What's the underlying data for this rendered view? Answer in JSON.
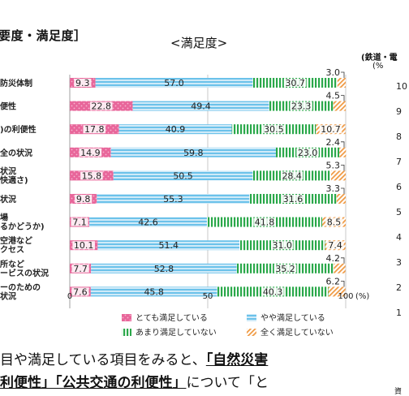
{
  "header_left": "要度・満足度］",
  "right_note": "(鉄道・電",
  "right_unit": "(%",
  "source": "資",
  "bottom_text": {
    "line1_plain": "目や満足している項目をみると、",
    "line1_ul": "「自然災害",
    "line2_ul1": "利便性」",
    "line2_ul2": "「公共交通の利便性」",
    "line2_plain": "について「と"
  },
  "right_axis_ticks": [
    "10",
    "9",
    "8",
    "7",
    "6",
    "5",
    "4",
    "3",
    "2",
    "1"
  ],
  "colors": {
    "very_satisfied": "#e8669a",
    "somewhat_satisfied": "#74c6ec",
    "not_very_satisfied": "#2aa84a",
    "not_at_all": "#f09a44"
  },
  "chart_data": {
    "type": "bar",
    "orientation": "horizontal",
    "stacked": true,
    "title": "<満足度>",
    "xlim": [
      0,
      100
    ],
    "x_ticks": [
      "0",
      "50",
      "100"
    ],
    "x_unit": "(%)",
    "categories": [
      [
        "防災体制"
      ],
      [
        "便性"
      ],
      [
        ")の利便性"
      ],
      [
        "全の状況"
      ],
      [
        "状況",
        "快適さ)"
      ],
      [
        "状況"
      ],
      [
        "場",
        "るかどうか)"
      ],
      [
        "空港など",
        "クセス"
      ],
      [
        "所など",
        "ービスの状況"
      ],
      [
        "ーのための",
        "状況"
      ]
    ],
    "series": [
      {
        "name": "とても満足している",
        "key": "very_satisfied",
        "values": [
          9.3,
          22.8,
          17.8,
          14.9,
          15.8,
          9.8,
          7.1,
          10.1,
          7.7,
          7.6
        ]
      },
      {
        "name": "やや満足している",
        "key": "somewhat_satisfied",
        "values": [
          57.0,
          49.4,
          40.9,
          59.8,
          50.5,
          55.3,
          42.6,
          51.4,
          52.8,
          45.8
        ]
      },
      {
        "name": "あまり満足していない",
        "key": "not_very_satisfied",
        "values": [
          30.7,
          23.3,
          30.5,
          23.0,
          28.4,
          31.6,
          41.8,
          31.0,
          35.2,
          40.3
        ]
      },
      {
        "name": "全く満足していない",
        "key": "not_at_all",
        "values": [
          3.0,
          4.5,
          10.7,
          2.4,
          5.3,
          3.3,
          8.5,
          7.4,
          4.2,
          6.2
        ]
      }
    ],
    "value_labels": [
      [
        "9.3",
        "57.0",
        "30.7",
        "3.0"
      ],
      [
        "22.8",
        "49.4",
        "23.3",
        "4.5"
      ],
      [
        "17.8",
        "40.9",
        "30.5",
        "10.7"
      ],
      [
        "14.9",
        "59.8",
        "23.0",
        "2.4"
      ],
      [
        "15.8",
        "50.5",
        "28.4",
        "5.3"
      ],
      [
        "9.8",
        "55.3",
        "31.6",
        "3.3"
      ],
      [
        "7.1",
        "42.6",
        "41.8",
        "8.5"
      ],
      [
        "10.1",
        "51.4",
        "31.0",
        "7.4"
      ],
      [
        "7.7",
        "52.8",
        "35.2",
        "4.2"
      ],
      [
        "7.6",
        "45.8",
        "40.3",
        "6.2"
      ]
    ],
    "outside_labels": [
      0,
      1,
      3,
      4,
      5,
      8,
      9
    ],
    "legend_position": "bottom",
    "grid": true
  }
}
